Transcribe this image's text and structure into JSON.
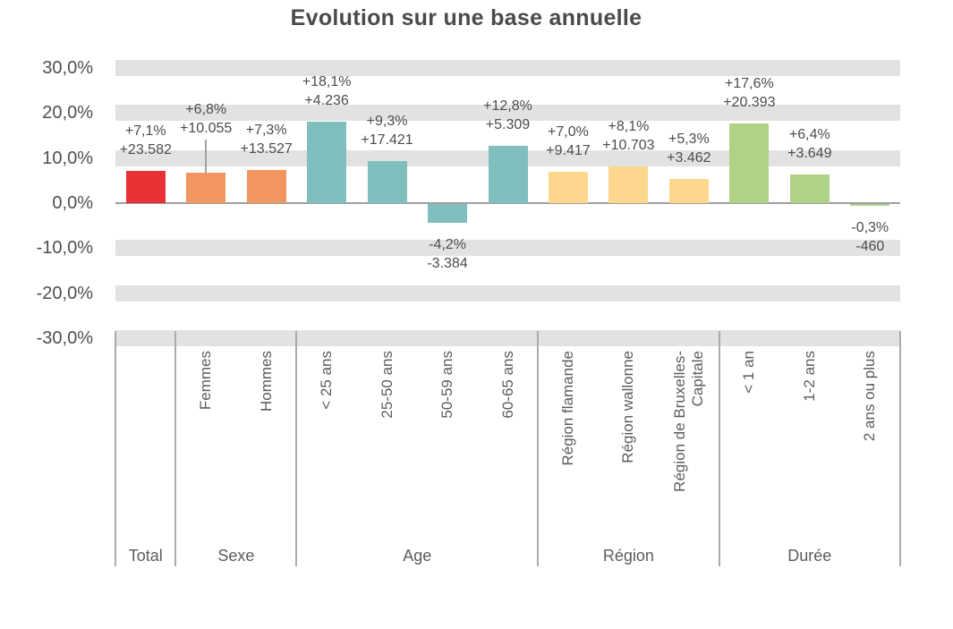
{
  "title": "Evolution sur une base annuelle",
  "colors": {
    "band": "#e2e2e2",
    "axis_line": "#9f9f9f",
    "divider": "#ababab",
    "leader_line": "#a3a3a3",
    "title_text": "#4a4a4a",
    "value_label_text": "#4c4c4c",
    "axis_tick_text": "#4f4f4f",
    "category_text": "#5c5c5c",
    "total_bar": "#e93235",
    "sexe_bar": "#f0965e",
    "age_bar": "#80bfbd",
    "region_bar": "#fdd78e",
    "duree_bar": "#b0d287"
  },
  "chart_data": {
    "type": "bar",
    "title": "Evolution sur une base annuelle",
    "xlabel": "",
    "ylabel": "",
    "ylim": [
      -35,
      35
    ],
    "grid": "horizontal-gray-bands-every-10pct",
    "legend": "none",
    "value_format": "percent change with absolute change, French notation",
    "yticks": [
      {
        "value": 30,
        "label": "30,0%"
      },
      {
        "value": 20,
        "label": "20,0%"
      },
      {
        "value": 10,
        "label": "10,0%"
      },
      {
        "value": 0,
        "label": "0,0%"
      },
      {
        "value": -10,
        "label": "-10,0%"
      },
      {
        "value": -20,
        "label": "-20,0%"
      },
      {
        "value": -30,
        "label": "-30,0%"
      }
    ],
    "groups": [
      {
        "label": "Total",
        "color": "#e93235",
        "bars": [
          {
            "category": "",
            "category_lines": [],
            "value_pct": 7.1,
            "value_abs": 23582,
            "pct_label": "+7,1%",
            "abs_label": "+23.582"
          }
        ]
      },
      {
        "label": "Sexe",
        "color": "#f0965e",
        "bars": [
          {
            "category": "Femmes",
            "category_lines": [
              "Femmes"
            ],
            "value_pct": 6.8,
            "value_abs": 10055,
            "pct_label": "+6,8%",
            "abs_label": "+10.055",
            "callout_line": true
          },
          {
            "category": "Hommes",
            "category_lines": [
              "Hommes"
            ],
            "value_pct": 7.3,
            "value_abs": 13527,
            "pct_label": "+7,3%",
            "abs_label": "+13.527"
          }
        ]
      },
      {
        "label": "Age",
        "color": "#80bfbd",
        "bars": [
          {
            "category": "< 25 ans",
            "category_lines": [
              "< 25 ans"
            ],
            "value_pct": 18.1,
            "value_abs": 4236,
            "pct_label": "+18,1%",
            "abs_label": "+4.236"
          },
          {
            "category": "25-50 ans",
            "category_lines": [
              "25-50 ans"
            ],
            "value_pct": 9.3,
            "value_abs": 17421,
            "pct_label": "+9,3%",
            "abs_label": "+17.421"
          },
          {
            "category": "50-59 ans",
            "category_lines": [
              "50-59 ans"
            ],
            "value_pct": -4.2,
            "value_abs": -3384,
            "pct_label": "-4,2%",
            "abs_label": "-3.384"
          },
          {
            "category": "60-65 ans",
            "category_lines": [
              "60-65 ans"
            ],
            "value_pct": 12.8,
            "value_abs": 5309,
            "pct_label": "+12,8%",
            "abs_label": "+5.309"
          }
        ]
      },
      {
        "label": "Région",
        "color": "#fdd78e",
        "bars": [
          {
            "category": "Région flamande",
            "category_lines": [
              "Région flamande"
            ],
            "value_pct": 7.0,
            "value_abs": 9417,
            "pct_label": "+7,0%",
            "abs_label": "+9.417"
          },
          {
            "category": "Région wallonne",
            "category_lines": [
              "Région wallonne"
            ],
            "value_pct": 8.1,
            "value_abs": 10703,
            "pct_label": "+8,1%",
            "abs_label": "+10.703"
          },
          {
            "category": "Région de Bruxelles-Capitale",
            "category_lines": [
              "Région de Bruxelles-",
              "Capitale"
            ],
            "value_pct": 5.3,
            "value_abs": 3462,
            "pct_label": "+5,3%",
            "abs_label": "+3.462"
          }
        ]
      },
      {
        "label": "Durée",
        "color": "#b0d287",
        "bars": [
          {
            "category": "< 1 an",
            "category_lines": [
              "< 1 an"
            ],
            "value_pct": 17.6,
            "value_abs": 20393,
            "pct_label": "+17,6%",
            "abs_label": "+20.393"
          },
          {
            "category": "1-2 ans",
            "category_lines": [
              "1-2 ans"
            ],
            "value_pct": 6.4,
            "value_abs": 3649,
            "pct_label": "+6,4%",
            "abs_label": "+3.649"
          },
          {
            "category": "2 ans ou plus",
            "category_lines": [
              "2 ans ou plus"
            ],
            "value_pct": -0.3,
            "value_abs": -460,
            "pct_label": "-0,3%",
            "abs_label": "-460"
          }
        ]
      }
    ]
  }
}
